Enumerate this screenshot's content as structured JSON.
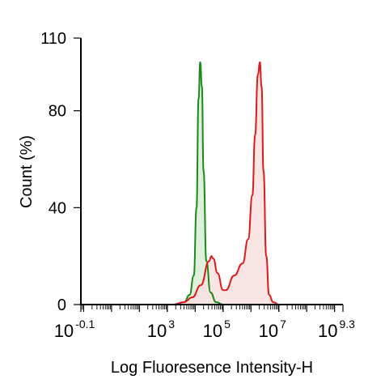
{
  "chart_data": {
    "type": "line",
    "title": "",
    "xlabel": "Log Fluoresence Intensity-H",
    "ylabel": "Count  (%)",
    "x_scale": "log",
    "xlim_log10": [
      -0.1,
      9.3
    ],
    "ylim": [
      0,
      110
    ],
    "yticks": [
      {
        "value": 0,
        "label": "0"
      },
      {
        "value": 40,
        "label": "40"
      },
      {
        "value": 80,
        "label": "80"
      },
      {
        "value": 110,
        "label": "110"
      }
    ],
    "xticks": [
      {
        "log10": -0.1,
        "base": "10",
        "exp": "-0.1"
      },
      {
        "log10": 3,
        "base": "10",
        "exp": "3"
      },
      {
        "log10": 5,
        "base": "10",
        "exp": "5"
      },
      {
        "log10": 7,
        "base": "10",
        "exp": "7"
      },
      {
        "log10": 9.3,
        "base": "10",
        "exp": "9.3"
      }
    ],
    "grid": false,
    "series": [
      {
        "color": "#1a8a1a",
        "fill": "#d8ecd6",
        "x_log10": [
          3.3,
          3.6,
          3.8,
          3.95,
          4.05,
          4.12,
          4.18,
          4.24,
          4.3,
          4.4,
          4.55,
          4.75,
          5.0,
          5.1
        ],
        "y": [
          0,
          1,
          4,
          12,
          40,
          85,
          100,
          90,
          55,
          18,
          5,
          1,
          0,
          0
        ]
      },
      {
        "color": "#dd1a1a",
        "fill": "#f9e0e0",
        "x_log10": [
          3.2,
          3.6,
          3.9,
          4.2,
          4.5,
          4.58,
          4.65,
          4.8,
          5.0,
          5.1,
          5.4,
          5.7,
          5.9,
          6.05,
          6.15,
          6.25,
          6.32,
          6.38,
          6.45,
          6.55,
          6.65,
          6.8,
          7.0,
          7.1
        ],
        "y": [
          0,
          1,
          3,
          8,
          18,
          20,
          19,
          13,
          6,
          6,
          12,
          17,
          27,
          45,
          70,
          95,
          100,
          90,
          55,
          20,
          4,
          1,
          0,
          0
        ]
      }
    ]
  }
}
